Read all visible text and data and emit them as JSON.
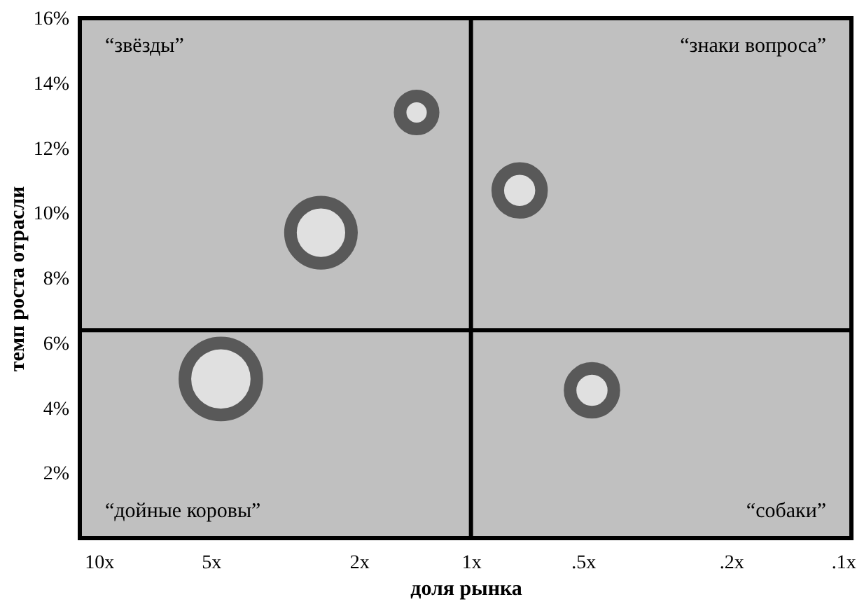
{
  "chart_data": {
    "type": "bubble",
    "xlabel": "доля рынка",
    "ylabel": "темп роста отрасли",
    "x": [
      4.7,
      2.53,
      1.4,
      0.74,
      0.473
    ],
    "series": [
      {
        "color": "#e0e0e0",
        "values": [
          4.9,
          9.4,
          13.1,
          10.7,
          4.55
        ],
        "sizes": [
          1,
          0.72,
          0.21,
          0.37,
          0.37
        ]
      }
    ],
    "xlim": [
      11.25,
      0.095
    ],
    "ylim": [
      0,
      16
    ],
    "log": "x",
    "xticks": [
      {
        "value": 10,
        "label": "10x"
      },
      {
        "value": 5,
        "label": "5x"
      },
      {
        "value": 2,
        "label": "2x"
      },
      {
        "value": 1,
        "label": "1x"
      },
      {
        "value": 0.5,
        "label": ".5x"
      },
      {
        "value": 0.2,
        "label": ".2x"
      },
      {
        "value": 0.1,
        "label": ".1x"
      }
    ],
    "yticks": [
      {
        "value": 2,
        "label": "2%"
      },
      {
        "value": 4,
        "label": "4%"
      },
      {
        "value": 6,
        "label": "6%"
      },
      {
        "value": 8,
        "label": "8%"
      },
      {
        "value": 10,
        "label": "10%"
      },
      {
        "value": 12,
        "label": "12%"
      },
      {
        "value": 14,
        "label": "14%"
      },
      {
        "value": 16,
        "label": "16%"
      }
    ],
    "ref_lines": [
      {
        "axis": "x",
        "value": 1,
        "color": "#000000"
      },
      {
        "axis": "y",
        "value": 6.4,
        "color": "#000000"
      }
    ],
    "annotations": [
      "“звёзды”",
      "“знаки вопроса”",
      "“дойные коровы”",
      "“собаки”"
    ],
    "grid": false
  }
}
